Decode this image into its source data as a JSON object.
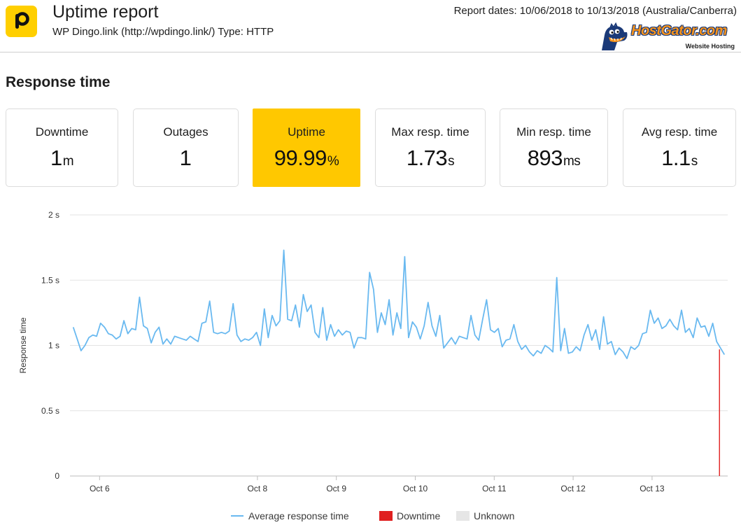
{
  "header": {
    "title": "Uptime report",
    "subtitle": "WP Dingo.link (http://wpdingo.link/) Type: HTTP",
    "report_dates": "Report dates: 10/06/2018 to 10/13/2018 (Australia/Canberra)",
    "host_brand": "HostGator.com",
    "host_tagline": "Website Hosting"
  },
  "section": {
    "title": "Response time"
  },
  "stats": [
    {
      "label": "Downtime",
      "value": "1",
      "unit": "m"
    },
    {
      "label": "Outages",
      "value": "1",
      "unit": ""
    },
    {
      "label": "Uptime",
      "value": "99.99",
      "unit": "%"
    },
    {
      "label": "Max resp. time",
      "value": "1.73",
      "unit": "s"
    },
    {
      "label": "Min resp. time",
      "value": "893",
      "unit": "ms"
    },
    {
      "label": "Avg resp. time",
      "value": "1.1",
      "unit": "s"
    }
  ],
  "colors": {
    "accent": "#ffc800",
    "line": "#69b9f0",
    "downtime": "#e02020",
    "unknown": "#e6e6e6"
  },
  "chart_data": {
    "type": "line",
    "xlabel": "",
    "ylabel": "Response time",
    "ylim": [
      0,
      2
    ],
    "yticks": [
      {
        "value": 0,
        "label": "0"
      },
      {
        "value": 0.5,
        "label": "0.5 s"
      },
      {
        "value": 1,
        "label": "1 s"
      },
      {
        "value": 1.5,
        "label": "1.5 s"
      },
      {
        "value": 2,
        "label": "2 s"
      }
    ],
    "xlim": [
      "10/05/2018 15:00",
      "10/13/2018 23:00"
    ],
    "xticks": [
      {
        "date": "10/06/2018",
        "label": "Oct 6"
      },
      {
        "date": "10/08/2018",
        "label": "Oct 8"
      },
      {
        "date": "10/09/2018",
        "label": "Oct 9"
      },
      {
        "date": "10/10/2018",
        "label": "Oct 10"
      },
      {
        "date": "10/11/2018",
        "label": "Oct 11"
      },
      {
        "date": "10/12/2018",
        "label": "Oct 12"
      },
      {
        "date": "10/13/2018",
        "label": "Oct 13"
      }
    ],
    "grid": true,
    "legend": "bottom",
    "series": [
      {
        "name": "Average response time",
        "x_start": "10/05/2018 16:00",
        "x_end": "10/13/2018 22:00",
        "values": [
          1.14,
          1.05,
          0.96,
          1.0,
          1.06,
          1.08,
          1.07,
          1.17,
          1.14,
          1.09,
          1.08,
          1.05,
          1.07,
          1.19,
          1.09,
          1.13,
          1.12,
          1.37,
          1.15,
          1.13,
          1.02,
          1.1,
          1.14,
          1.01,
          1.05,
          1.01,
          1.07,
          1.06,
          1.05,
          1.04,
          1.07,
          1.05,
          1.03,
          1.17,
          1.18,
          1.34,
          1.1,
          1.09,
          1.1,
          1.09,
          1.11,
          1.32,
          1.08,
          1.03,
          1.05,
          1.04,
          1.06,
          1.1,
          1.0,
          1.28,
          1.06,
          1.23,
          1.15,
          1.19,
          1.73,
          1.2,
          1.19,
          1.31,
          1.14,
          1.39,
          1.26,
          1.31,
          1.1,
          1.06,
          1.29,
          1.04,
          1.16,
          1.07,
          1.12,
          1.08,
          1.11,
          1.1,
          0.98,
          1.06,
          1.06,
          1.05,
          1.56,
          1.43,
          1.1,
          1.25,
          1.16,
          1.35,
          1.08,
          1.25,
          1.13,
          1.68,
          1.06,
          1.18,
          1.14,
          1.05,
          1.15,
          1.33,
          1.15,
          1.07,
          1.23,
          0.98,
          1.02,
          1.06,
          1.01,
          1.07,
          1.06,
          1.05,
          1.23,
          1.08,
          1.04,
          1.2,
          1.35,
          1.12,
          1.1,
          1.13,
          0.99,
          1.04,
          1.05,
          1.16,
          1.03,
          0.97,
          1.0,
          0.95,
          0.92,
          0.96,
          0.94,
          1.0,
          0.98,
          0.95,
          1.52,
          0.96,
          1.13,
          0.94,
          0.95,
          0.99,
          0.96,
          1.08,
          1.16,
          1.04,
          1.12,
          0.97,
          1.22,
          1.01,
          1.03,
          0.93,
          0.98,
          0.95,
          0.9,
          0.99,
          0.97,
          1.0,
          1.09,
          1.1,
          1.27,
          1.17,
          1.21,
          1.13,
          1.15,
          1.2,
          1.15,
          1.12,
          1.27,
          1.1,
          1.13,
          1.06,
          1.21,
          1.14,
          1.15,
          1.07,
          1.17,
          1.03,
          0.98,
          0.93
        ]
      }
    ],
    "downtime_markers": [
      {
        "date": "10/13/2018 20:30",
        "value": 0.97
      }
    ],
    "legend_items": [
      {
        "name": "Average response time",
        "kind": "line",
        "color": "#69b9f0"
      },
      {
        "name": "Downtime",
        "kind": "box",
        "color": "#e02020"
      },
      {
        "name": "Unknown",
        "kind": "box",
        "color": "#e6e6e6"
      }
    ]
  }
}
